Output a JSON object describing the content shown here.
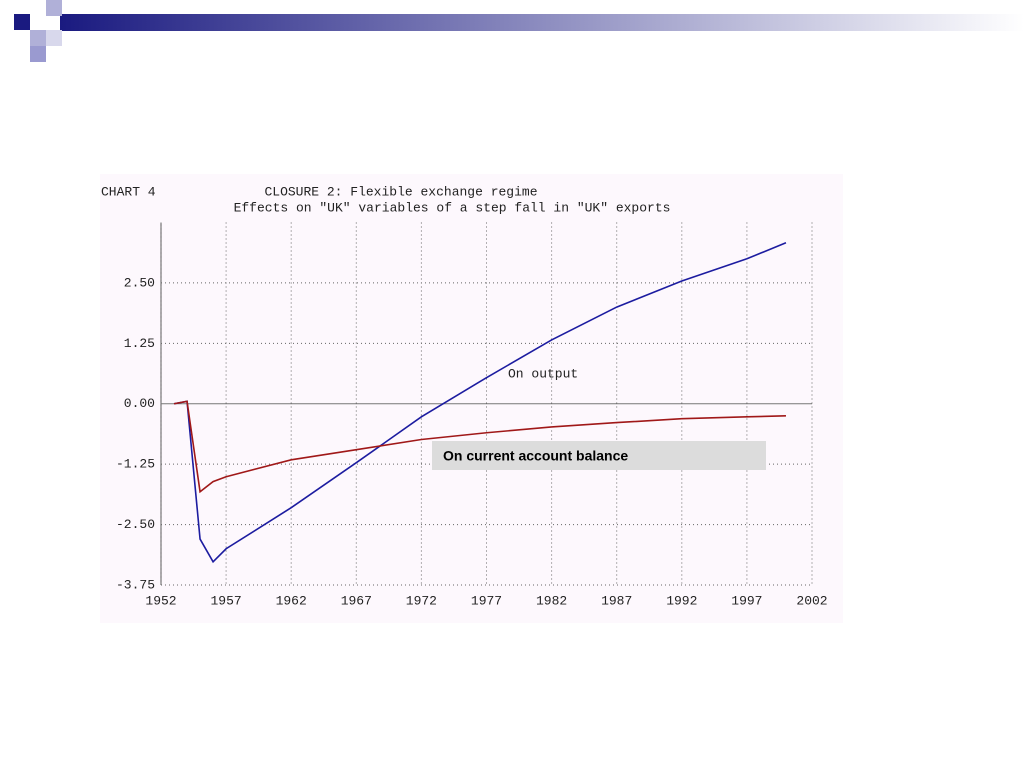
{
  "chart_data": {
    "type": "line",
    "chart_label": "CHART 4",
    "title": "CLOSURE 2: Flexible exchange regime",
    "subtitle": "Effects on \"UK\" variables of a step fall in \"UK\" exports",
    "x": [
      1953,
      1954,
      1955,
      1956,
      1957,
      1962,
      1967,
      1972,
      1977,
      1982,
      1987,
      1992,
      1997,
      2000
    ],
    "series": [
      {
        "name": "On output",
        "color": "#1c1ca0",
        "values": [
          0,
          0.05,
          -2.8,
          -3.27,
          -3.0,
          -2.15,
          -1.22,
          -0.27,
          0.54,
          1.32,
          2.0,
          2.54,
          3.0,
          3.33
        ]
      },
      {
        "name": "On current account balance",
        "color": "#a01818",
        "values": [
          0,
          0.05,
          -1.82,
          -1.61,
          -1.51,
          -1.16,
          -0.95,
          -0.74,
          -0.6,
          -0.48,
          -0.39,
          -0.31,
          -0.27,
          -0.25
        ]
      }
    ],
    "xlim": [
      1952,
      2002
    ],
    "xticks": [
      1952,
      1957,
      1962,
      1967,
      1972,
      1977,
      1982,
      1987,
      1992,
      1997,
      2002
    ],
    "ylim": [
      -3.75,
      3.75
    ],
    "yticks": [
      {
        "value": -3.75,
        "label": "-3.75"
      },
      {
        "value": -2.5,
        "label": "-2.50"
      },
      {
        "value": -1.25,
        "label": "-1.25"
      },
      {
        "value": 0,
        "label": "0.00"
      },
      {
        "value": 1.25,
        "label": "1.25"
      },
      {
        "value": 2.5,
        "label": "2.50"
      }
    ],
    "grid": true
  }
}
